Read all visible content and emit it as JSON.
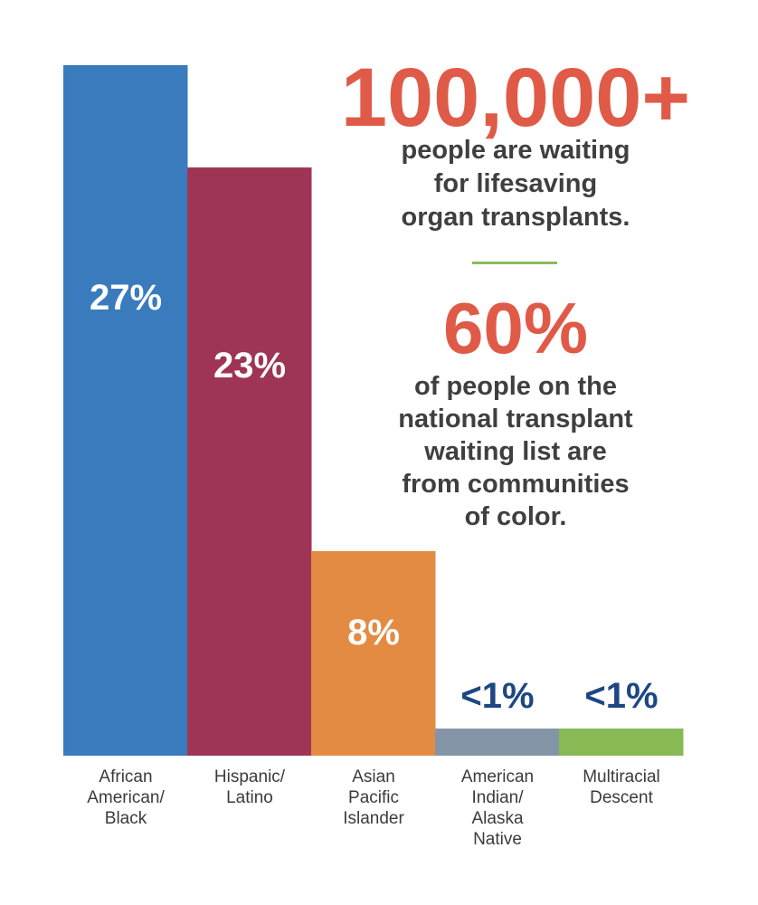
{
  "chart_data": {
    "type": "bar",
    "categories": [
      "African\nAmerican/\nBlack",
      "Hispanic/\nLatino",
      "Asian\nPacific\nIslander",
      "American\nIndian/\nAlaska\nNative",
      "Multiracial\nDescent"
    ],
    "values": [
      27,
      23,
      8,
      1,
      1
    ],
    "value_labels": [
      "27%",
      "23%",
      "8%",
      "<1%",
      "<1%"
    ],
    "colors": [
      "#3a7bbd",
      "#9e3555",
      "#e48b43",
      "#8595a8",
      "#87b954"
    ],
    "label_colors": [
      "#ffffff",
      "#ffffff",
      "#ffffff",
      "#1d4782",
      "#1d4782"
    ],
    "ylim": [
      0,
      27
    ],
    "grid": false
  },
  "callouts": {
    "stat1": "100,000+",
    "text1": "people are waiting\nfor lifesaving\norgan transplants.",
    "stat2": "60%",
    "text2": "of people on the\nnational transplant\nwaiting list are\nfrom communities\nof color."
  }
}
